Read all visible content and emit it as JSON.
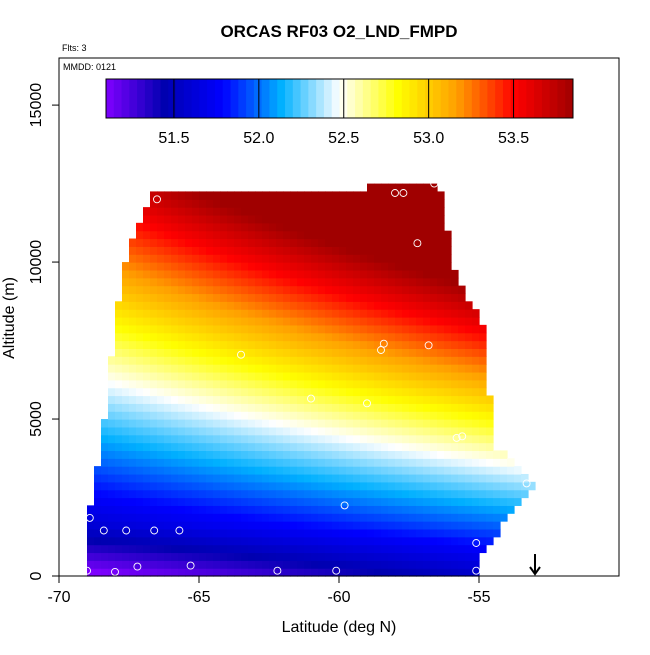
{
  "chart_data": {
    "type": "heatmap",
    "title": "ORCAS RF03 O2_LND_FMPD",
    "xlabel": "Latitude (deg N)",
    "ylabel": "Altitude (m)",
    "annotations": {
      "flights": "Flts: 3",
      "mmdd": "MMDD: 0121"
    },
    "xlim": [
      -70,
      -50
    ],
    "ylim": [
      0,
      16500
    ],
    "x_ticks": [
      -70,
      -65,
      -60,
      -55
    ],
    "x_tick_labels": [
      "-70",
      "-65",
      "-60",
      "-55"
    ],
    "y_ticks": [
      0,
      5000,
      10000,
      15000
    ],
    "y_tick_labels": [
      "0",
      "5000",
      "10000",
      "15000"
    ],
    "colorbar": {
      "range": [
        51.1,
        53.85
      ],
      "ticks": [
        51.5,
        52.0,
        52.5,
        53.0,
        53.5
      ],
      "tick_labels": [
        "51.5",
        "52.0",
        "52.5",
        "53.0",
        "53.5"
      ],
      "colors": [
        "#7f00ff",
        "#0000b0",
        "#0000ff",
        "#00b0ff",
        "#ffffff",
        "#ffff00",
        "#ffa000",
        "#ff0000",
        "#a00000"
      ]
    },
    "field_boundary": [
      [
        -68.9,
        0
      ],
      [
        -55.1,
        0
      ],
      [
        -55.1,
        500
      ],
      [
        -54.5,
        1100
      ],
      [
        -54,
        2000
      ],
      [
        -53.3,
        2600
      ],
      [
        -53.0,
        3000
      ],
      [
        -54.5,
        4200
      ],
      [
        -54.8,
        8000
      ],
      [
        -55.8,
        9500
      ],
      [
        -56.4,
        12400
      ],
      [
        -66.6,
        12300
      ],
      [
        -67.5,
        10500
      ],
      [
        -68.0,
        8000
      ],
      [
        -68.5,
        4000
      ],
      [
        -68.9,
        2000
      ]
    ],
    "obs_points": [
      [
        -66.5,
        12000
      ],
      [
        -58.0,
        12200
      ],
      [
        -57.7,
        12200
      ],
      [
        -57.2,
        10600
      ],
      [
        -58.4,
        7400
      ],
      [
        -58.5,
        7200
      ],
      [
        -56.8,
        7350
      ],
      [
        -63.5,
        7050
      ],
      [
        -61.0,
        5650
      ],
      [
        -59.0,
        5500
      ],
      [
        -55.8,
        4400
      ],
      [
        -55.6,
        4450
      ],
      [
        -68.7,
        4300
      ],
      [
        -53.3,
        2950
      ],
      [
        -59.8,
        2250
      ],
      [
        -68.9,
        1850
      ],
      [
        -68.4,
        1450
      ],
      [
        -67.6,
        1450
      ],
      [
        -66.6,
        1450
      ],
      [
        -65.7,
        1450
      ],
      [
        -55.1,
        1050
      ],
      [
        -67.2,
        300
      ],
      [
        -65.3,
        330
      ],
      [
        -62.2,
        170
      ],
      [
        -60.1,
        170
      ],
      [
        -55.1,
        170
      ],
      [
        -69.0,
        170
      ],
      [
        -68.0,
        130
      ],
      [
        -56.6,
        12500
      ]
    ],
    "flight_end_marker": {
      "x": -53.0,
      "y_top": 700,
      "y_bottom": 0
    }
  }
}
